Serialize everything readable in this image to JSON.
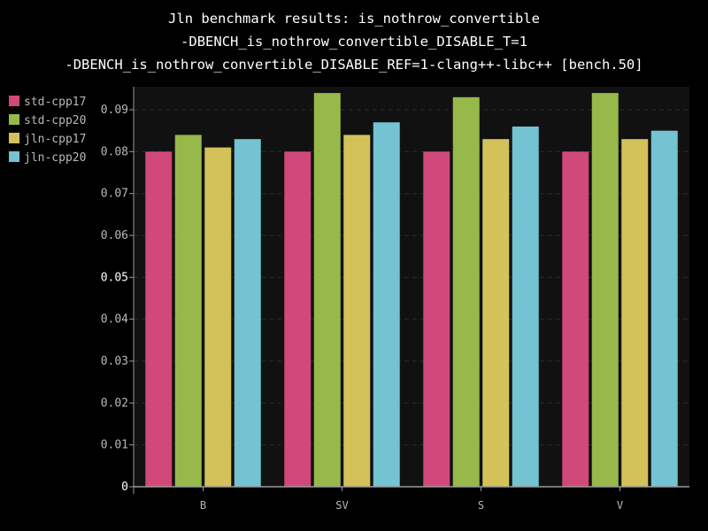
{
  "chart_data": {
    "type": "bar",
    "title_lines": [
      "Jln benchmark results: is_nothrow_convertible",
      "-DBENCH_is_nothrow_convertible_DISABLE_T=1",
      "-DBENCH_is_nothrow_convertible_DISABLE_REF=1-clang++-libc++ [bench.50]"
    ],
    "categories": [
      "B",
      "SV",
      "S",
      "V"
    ],
    "series": [
      {
        "name": "std-cpp17",
        "color": "#d0497a",
        "values": [
          0.08,
          0.08,
          0.08,
          0.08
        ]
      },
      {
        "name": "std-cpp20",
        "color": "#96b94a",
        "values": [
          0.084,
          0.094,
          0.093,
          0.094
        ]
      },
      {
        "name": "jln-cpp17",
        "color": "#d3c25a",
        "values": [
          0.081,
          0.084,
          0.083,
          0.083
        ]
      },
      {
        "name": "jln-cpp20",
        "color": "#73c3d3",
        "values": [
          0.083,
          0.087,
          0.086,
          0.085
        ]
      }
    ],
    "yticks": [
      "0",
      "0.01",
      "0.02",
      "0.03",
      "0.04",
      "0.05",
      "0.06",
      "0.07",
      "0.08",
      "0.09"
    ],
    "ylim": [
      0,
      0.0955
    ],
    "grid": true,
    "legend_position": "left",
    "colors": {
      "background": "#000000",
      "plot_background": "#111111",
      "grid": "#2a2a2a",
      "axis": "#9a9a9a"
    }
  }
}
